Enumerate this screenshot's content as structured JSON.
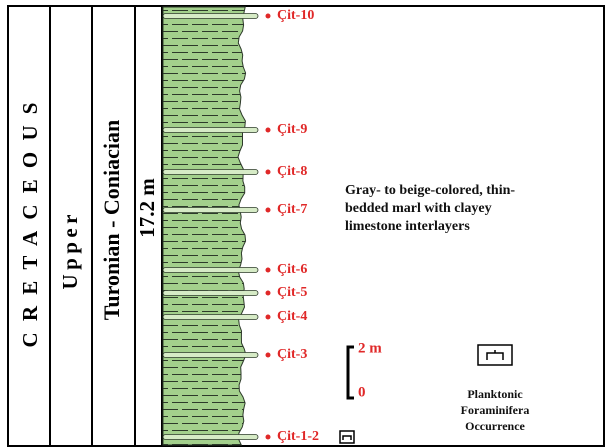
{
  "stratigraphy": {
    "system": "CRETACEOUS",
    "series": "Upper",
    "stage": "Turonian - Coniacian",
    "thickness": "17.2 m"
  },
  "samples": [
    "Çit-10",
    "Çit-9",
    "Çit-8",
    "Çit-7",
    "Çit-6",
    "Çit-5",
    "Çit-4",
    "Çit-3",
    "Çit-1-2"
  ],
  "description": [
    "Gray- to beige-colored, thin-",
    "bedded marl with clayey",
    "limestone interlayers"
  ],
  "scale": {
    "top": "2 m",
    "bottom": "0"
  },
  "legend": [
    "Planktonic",
    "Foraminifera",
    "Occurrence"
  ]
}
